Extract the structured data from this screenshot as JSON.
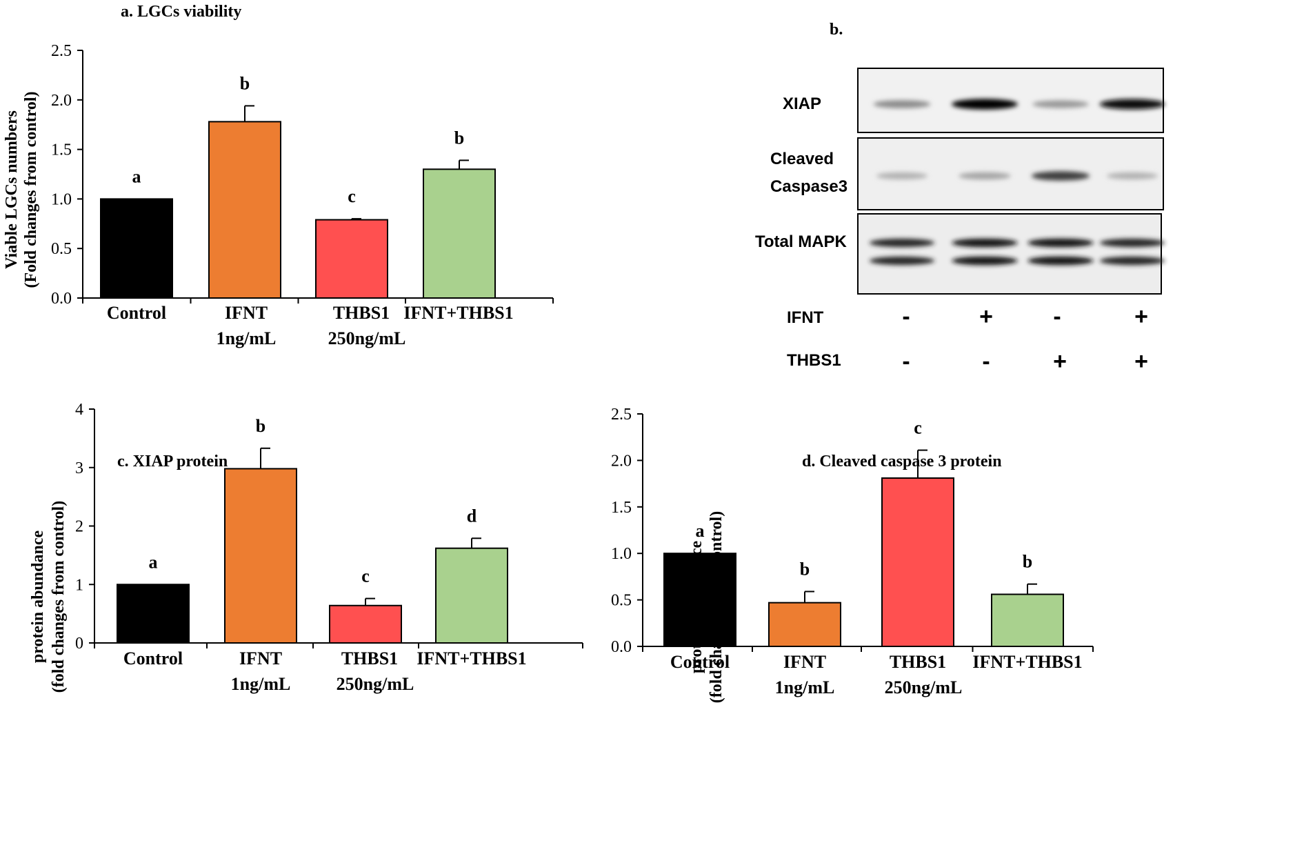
{
  "chart_data": [
    {
      "id": "a",
      "type": "bar",
      "title": "a. LGCs viability",
      "ylabel_lines": [
        "Viable LGCs numbers",
        "(Fold changes from control)"
      ],
      "xlabel": "",
      "ylim": [
        0,
        2.5
      ],
      "yticks": [
        "0.0",
        "0.5",
        "1.0",
        "1.5",
        "2.0",
        "2.5"
      ],
      "ytick_values": [
        0,
        0.5,
        1.0,
        1.5,
        2.0,
        2.5
      ],
      "categories": [
        [
          "Control"
        ],
        [
          "IFNT",
          "1ng/mL"
        ],
        [
          "THBS1",
          "250ng/mL"
        ],
        [
          "IFNT+THBS1"
        ]
      ],
      "values": [
        1.0,
        1.78,
        0.79,
        1.3
      ],
      "errors": [
        0,
        0.16,
        0.01,
        0.09
      ],
      "letters": [
        "a",
        "b",
        "c",
        "b"
      ],
      "colors": [
        "#000000",
        "#ed7d31",
        "#ff5050",
        "#a9d18e"
      ],
      "grid": false
    },
    {
      "id": "c",
      "type": "bar",
      "title": "c. XIAP protein",
      "ylabel_lines": [
        "protein abundance",
        "(fold changes from control)"
      ],
      "xlabel": "",
      "ylim": [
        0,
        4
      ],
      "yticks": [
        "0",
        "1",
        "2",
        "3",
        "4"
      ],
      "ytick_values": [
        0,
        1,
        2,
        3,
        4
      ],
      "categories": [
        [
          "Control"
        ],
        [
          "IFNT",
          "1ng/mL"
        ],
        [
          "THBS1",
          "250ng/mL"
        ],
        [
          "IFNT+THBS1"
        ]
      ],
      "values": [
        1.0,
        2.98,
        0.64,
        1.62
      ],
      "errors": [
        0,
        0.35,
        0.12,
        0.17
      ],
      "letters": [
        "a",
        "b",
        "c",
        "d"
      ],
      "colors": [
        "#000000",
        "#ed7d31",
        "#ff5050",
        "#a9d18e"
      ],
      "grid": false
    },
    {
      "id": "d",
      "type": "bar",
      "title": "d. Cleaved caspase 3 protein",
      "ylabel_lines": [
        "protein abundance",
        "(fold changes from control)"
      ],
      "xlabel": "",
      "ylim": [
        0,
        2.5
      ],
      "yticks": [
        "0.0",
        "0.5",
        "1.0",
        "1.5",
        "2.0",
        "2.5"
      ],
      "ytick_values": [
        0,
        0.5,
        1.0,
        1.5,
        2.0,
        2.5
      ],
      "categories": [
        [
          "Control"
        ],
        [
          "IFNT",
          "1ng/mL"
        ],
        [
          "THBS1",
          "250ng/mL"
        ],
        [
          "IFNT+THBS1"
        ]
      ],
      "values": [
        1.0,
        0.47,
        1.81,
        0.56
      ],
      "errors": [
        0,
        0.12,
        0.3,
        0.11
      ],
      "letters": [
        "a",
        "b",
        "c",
        "b"
      ],
      "colors": [
        "#000000",
        "#ed7d31",
        "#ff5050",
        "#a9d18e"
      ],
      "grid": false
    }
  ],
  "western_blot": {
    "title": "b.",
    "band_labels": [
      [
        "XIAP"
      ],
      [
        "Cleaved",
        "Caspase3"
      ],
      [
        "Total MAPK"
      ]
    ],
    "treatments": [
      {
        "label": "IFNT",
        "signs": [
          "-",
          "+",
          "-",
          "+"
        ]
      },
      {
        "label": "THBS1",
        "signs": [
          "-",
          "-",
          "+",
          "+"
        ]
      }
    ],
    "band_intensity": {
      "XIAP": [
        0.45,
        1.0,
        0.4,
        0.95
      ],
      "Cleaved Caspase3": [
        0.3,
        0.35,
        0.75,
        0.3
      ],
      "Total MAPK": [
        0.85,
        0.9,
        0.9,
        0.85
      ]
    }
  }
}
